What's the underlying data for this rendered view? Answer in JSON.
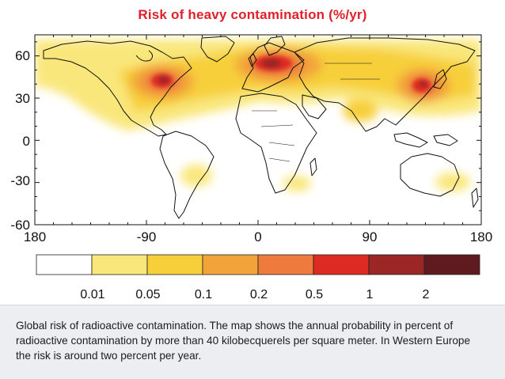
{
  "title": "Risk of heavy contamination (%/yr)",
  "axes": {
    "x_ticks": [
      "180",
      "-90",
      "0",
      "90",
      "180"
    ],
    "y_ticks": [
      "60",
      "30",
      "0",
      "-30",
      "-60"
    ]
  },
  "legend": {
    "labels": [
      "0.01",
      "0.05",
      "0.1",
      "0.2",
      "0.5",
      "1",
      "2"
    ],
    "colors": [
      "#ffffff",
      "#f9e77b",
      "#f7cf3b",
      "#f2a43b",
      "#ee7a3e",
      "#dd2b24",
      "#9a2626",
      "#5e1a1f"
    ]
  },
  "caption": "Global risk of radioactive contamination. The map shows the annual probability in percent of radioactive contamination by more than 40 kilobecquerels per square meter. In Western Europe the risk is around two percent per year."
}
